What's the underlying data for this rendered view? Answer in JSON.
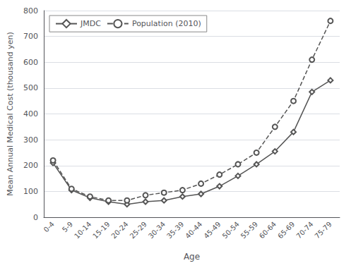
{
  "chart_data": {
    "type": "line",
    "categories": [
      "0-4",
      "5-9",
      "10-14",
      "15-19",
      "20-24",
      "25-29",
      "30-34",
      "35-39",
      "40-44",
      "45-49",
      "50-54",
      "55-59",
      "60-64",
      "65-69",
      "70-74",
      "75-79"
    ],
    "series": [
      {
        "name": "JMDC",
        "color": "#555555",
        "marker": "diamond",
        "line_style": "solid",
        "values": [
          210,
          105,
          75,
          60,
          50,
          60,
          65,
          80,
          90,
          120,
          160,
          205,
          255,
          330,
          485,
          530
        ]
      },
      {
        "name": "Population (2010)",
        "color": "#555555",
        "marker": "circle",
        "line_style": "dashed",
        "values": [
          220,
          110,
          80,
          65,
          65,
          85,
          95,
          105,
          130,
          165,
          205,
          250,
          350,
          450,
          610,
          760
        ]
      }
    ],
    "xlabel": "Age",
    "ylabel": "Mean Annual Medical Cost (thousand yen)",
    "ylim": [
      0,
      800
    ],
    "yticks": [
      0,
      100,
      200,
      300,
      400,
      500,
      600,
      700,
      800
    ],
    "grid": true,
    "legend": "upper left"
  }
}
